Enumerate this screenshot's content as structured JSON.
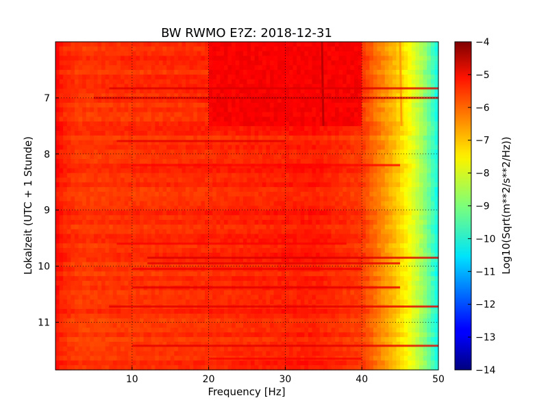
{
  "chart_data": {
    "type": "heatmap",
    "title": "BW RWMO E?Z: 2018-12-31",
    "xlabel": "Frequency [Hz]",
    "ylabel": "Lokalzeit (UTC + 1 Stunde)",
    "xlim": [
      0,
      50
    ],
    "ylim": [
      11.85,
      6.0
    ],
    "x_ticks": [
      10,
      20,
      30,
      40,
      50
    ],
    "y_ticks": [
      7,
      8,
      9,
      10,
      11
    ],
    "grid": true,
    "colormap": "jet",
    "colorbar": {
      "label": "Log10(Sqrt(m**2/s**2/Hz))",
      "min": -14,
      "max": -4,
      "ticks": [
        -4,
        -5,
        -6,
        -7,
        -8,
        -9,
        -10,
        -11,
        -12,
        -13,
        -14
      ]
    },
    "frequency_profile": {
      "frequency": [
        0,
        1,
        3,
        7,
        15,
        25,
        34,
        40,
        42,
        44,
        46,
        48,
        50
      ],
      "value": [
        -5.3,
        -5.6,
        -5.8,
        -5.75,
        -5.7,
        -5.6,
        -5.5,
        -5.8,
        -6.4,
        -7.0,
        -7.7,
        -8.7,
        -10.1
      ]
    },
    "features": [
      {
        "type": "vertical_line",
        "frequency": 34.8,
        "time_start": 6.0,
        "time_end": 7.5,
        "value": -4.6
      },
      {
        "type": "vertical_line",
        "frequency": 45.0,
        "time_start": 6.0,
        "time_end": 7.5,
        "value": -6.8
      },
      {
        "type": "block",
        "freq_start": 20,
        "freq_end": 40,
        "time_start": 6.0,
        "time_end": 7.5,
        "value": -5.2
      },
      {
        "type": "horizontal_band",
        "time": 6.83,
        "freq_start": 7,
        "freq_end": 50,
        "value": -4.9
      },
      {
        "type": "horizontal_band",
        "time": 7.0,
        "freq_start": 5,
        "freq_end": 50,
        "value": -4.8
      },
      {
        "type": "horizontal_band",
        "time": 7.77,
        "freq_start": 8,
        "freq_end": 30,
        "value": -5.0
      },
      {
        "type": "horizontal_band",
        "time": 8.2,
        "freq_start": 10,
        "freq_end": 45,
        "value": -5.3
      },
      {
        "type": "horizontal_band",
        "time": 9.6,
        "freq_start": 8,
        "freq_end": 38,
        "value": -5.2
      },
      {
        "type": "horizontal_band",
        "time": 9.85,
        "freq_start": 12,
        "freq_end": 50,
        "value": -4.9
      },
      {
        "type": "horizontal_band",
        "time": 9.95,
        "freq_start": 12,
        "freq_end": 45,
        "value": -5.0
      },
      {
        "type": "horizontal_band",
        "time": 10.05,
        "freq_start": 10,
        "freq_end": 40,
        "value": -5.1
      },
      {
        "type": "horizontal_band",
        "time": 10.38,
        "freq_start": 10,
        "freq_end": 45,
        "value": -5.0
      },
      {
        "type": "horizontal_band",
        "time": 10.72,
        "freq_start": 7,
        "freq_end": 50,
        "value": -5.0
      },
      {
        "type": "horizontal_band",
        "time": 11.42,
        "freq_start": 10,
        "freq_end": 50,
        "value": -5.0
      },
      {
        "type": "horizontal_band",
        "time": 11.65,
        "freq_start": 20,
        "freq_end": 40,
        "value": -5.2
      }
    ]
  }
}
